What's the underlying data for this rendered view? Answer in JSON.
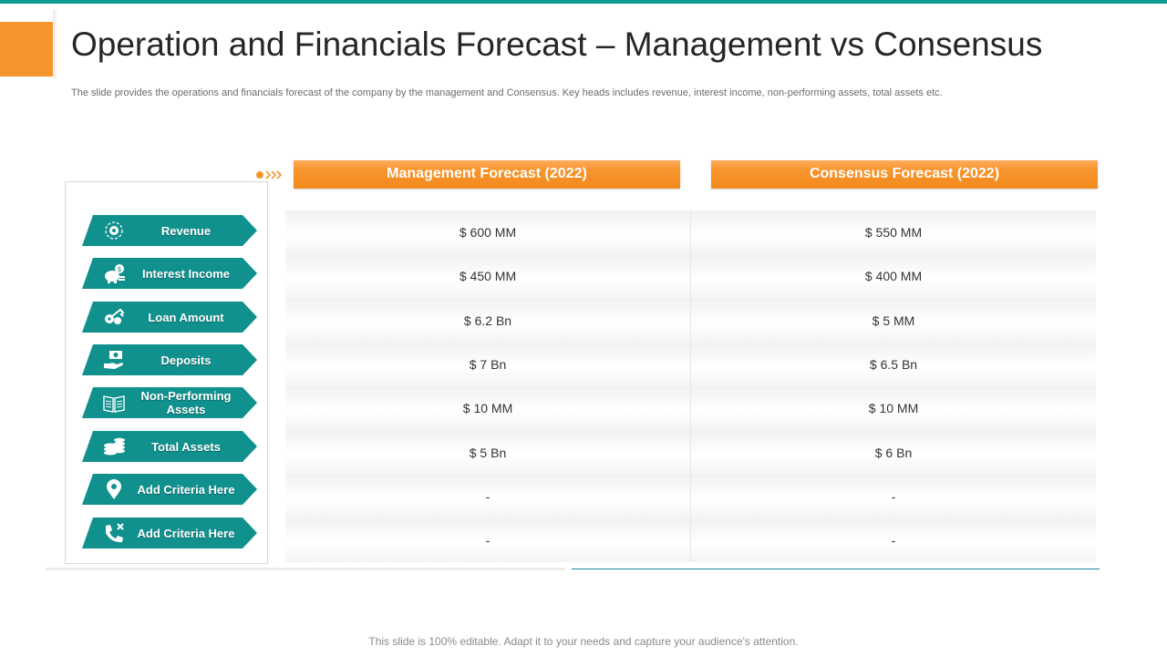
{
  "header": {
    "title": "Operation and Financials Forecast – Management vs Consensus",
    "subtitle": "The slide provides the operations and financials forecast of the company by the management and Consensus. Key heads includes revenue, interest income, non-performing assets, total assets etc."
  },
  "columns": {
    "management": "Management Forecast (2022)",
    "consensus": "Consensus Forecast (2022)"
  },
  "rows": [
    {
      "label": "Revenue",
      "icon": "gear-globe-icon",
      "management": "$ 600 MM",
      "consensus": "$ 550 MM"
    },
    {
      "label": "Interest Income",
      "icon": "piggy-bank-icon",
      "management": "$ 450 MM",
      "consensus": "$ 400 MM"
    },
    {
      "label": "Loan Amount",
      "icon": "keys-icon",
      "management": "$ 6.2 Bn",
      "consensus": "$ 5 MM"
    },
    {
      "label": "Deposits",
      "icon": "hand-money-icon",
      "management": "$ 7 Bn",
      "consensus": "$ 6.5 Bn"
    },
    {
      "label": "Non-Performing Assets",
      "icon": "book-icon",
      "management": "$ 10 MM",
      "consensus": "$ 10 MM"
    },
    {
      "label": "Total Assets",
      "icon": "coin-stack-icon",
      "management": "$ 5 Bn",
      "consensus": "$ 6 Bn"
    },
    {
      "label": "Add Criteria Here",
      "icon": "location-pin-icon",
      "management": "-",
      "consensus": "-"
    },
    {
      "label": "Add Criteria Here",
      "icon": "phone-cancel-icon",
      "management": "-",
      "consensus": "-"
    }
  ],
  "footer": "This slide is 100% editable. Adapt it to your needs and capture your audience's attention.",
  "colors": {
    "teal": "#0e9a93",
    "orange": "#f7952c",
    "pill_teal": "#11918e"
  }
}
